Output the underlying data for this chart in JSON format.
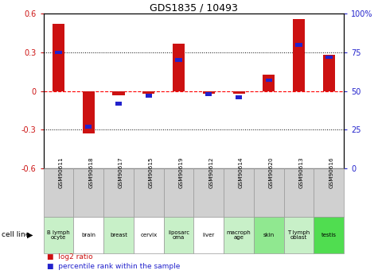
{
  "title": "GDS1835 / 10493",
  "samples": [
    "GSM90611",
    "GSM90618",
    "GSM90617",
    "GSM90615",
    "GSM90619",
    "GSM90612",
    "GSM90614",
    "GSM90620",
    "GSM90613",
    "GSM90616"
  ],
  "cell_lines": [
    "B lymph\nocyte",
    "brain",
    "breast",
    "cervix",
    "liposarc\noma",
    "liver",
    "macroph\nage",
    "skin",
    "T lymph\noblast",
    "testis"
  ],
  "cell_line_colors": [
    "#c8f0c8",
    "#ffffff",
    "#c8f0c8",
    "#ffffff",
    "#c8f0c8",
    "#ffffff",
    "#c8f0c8",
    "#90e890",
    "#c8f0c8",
    "#50dd50"
  ],
  "log2_ratio": [
    0.52,
    -0.33,
    -0.03,
    -0.02,
    0.37,
    -0.02,
    -0.02,
    0.13,
    0.56,
    0.28
  ],
  "percentile_rank": [
    75,
    27,
    42,
    47,
    70,
    48,
    46,
    57,
    80,
    72
  ],
  "ylim": [
    -0.6,
    0.6
  ],
  "right_ylim": [
    0,
    100
  ],
  "bar_color": "#cc1111",
  "dot_color": "#2222cc",
  "gsm_bg": "#d0d0d0",
  "legend_labels": [
    "log2 ratio",
    "percentile rank within the sample"
  ]
}
